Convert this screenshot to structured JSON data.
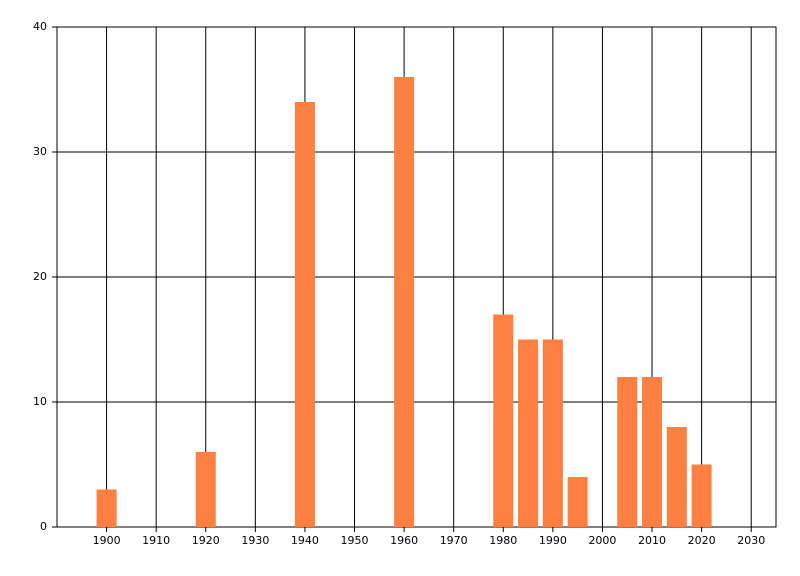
{
  "chart_data": {
    "type": "bar",
    "x": [
      1900,
      1920,
      1940,
      1960,
      1980,
      1985,
      1990,
      1995,
      2005,
      2010,
      2015,
      2020
    ],
    "values": [
      3,
      6,
      34,
      36,
      17,
      15,
      15,
      4,
      12,
      12,
      8,
      5
    ],
    "color": "#ff8040",
    "xlim": [
      1890,
      2035
    ],
    "xticks": [
      1900,
      1910,
      1920,
      1930,
      1940,
      1950,
      1960,
      1970,
      1980,
      1990,
      2000,
      2010,
      2020,
      2030
    ],
    "ylim": [
      0,
      40
    ],
    "yticks": [
      0,
      10,
      20,
      30,
      40
    ],
    "grid": true
  }
}
